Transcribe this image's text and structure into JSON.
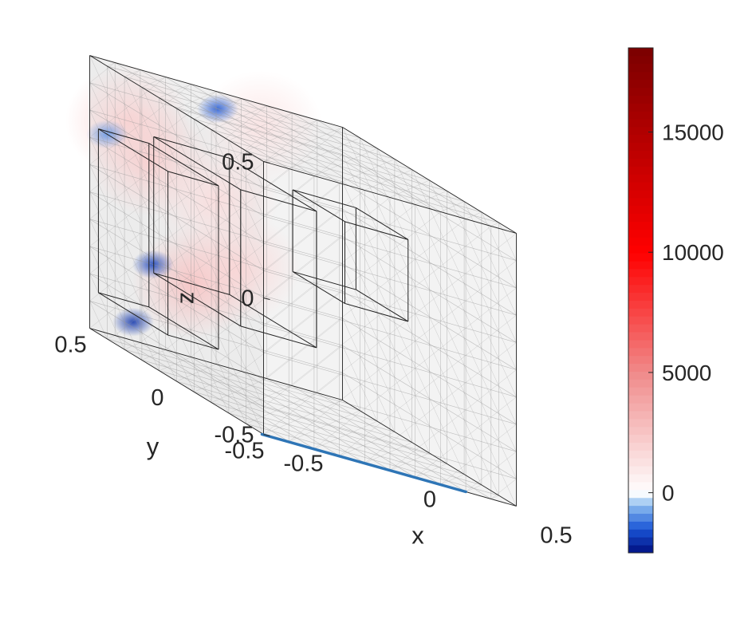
{
  "chart_data": {
    "type": "heatmap",
    "title": "",
    "axes": {
      "x": {
        "label": "x",
        "range": [
          -0.5,
          0.5
        ],
        "ticks": [
          -0.5,
          0,
          0.5
        ],
        "tick_labels": [
          "-0.5",
          "0",
          "0.5"
        ]
      },
      "y": {
        "label": "y",
        "range": [
          -0.5,
          0.5
        ],
        "ticks": [
          -0.5,
          0,
          0.5
        ],
        "tick_labels": [
          "-0.5",
          "0",
          "0.5"
        ]
      },
      "z": {
        "label": "z",
        "range": [
          -0.5,
          0.5
        ],
        "ticks": [
          -0.5,
          0,
          0.5
        ],
        "tick_labels": [
          "-0.5",
          "0",
          "0.5"
        ]
      }
    },
    "grid": true,
    "colorbar": {
      "range": [
        -2500,
        18500
      ],
      "ticks": [
        0,
        5000,
        10000,
        15000
      ],
      "tick_labels": [
        "0",
        "5000",
        "10000",
        "15000"
      ],
      "placement": "right",
      "colormap_stops": [
        {
          "value": -2500,
          "color": "#000f80"
        },
        {
          "value": -1500,
          "color": "#1a55d6"
        },
        {
          "value": -500,
          "color": "#8fbff0"
        },
        {
          "value": 0,
          "color": "#ffffff"
        },
        {
          "value": 5000,
          "color": "#f08a8a"
        },
        {
          "value": 10000,
          "color": "#ff0000"
        },
        {
          "value": 18500,
          "color": "#7a0000"
        }
      ]
    },
    "field_blobs": [
      {
        "face": "back-yz",
        "center": [
          -0.5,
          -0.1,
          -0.1
        ],
        "value": 2800
      },
      {
        "face": "back-yz",
        "center": [
          -0.5,
          0.15,
          0.25
        ],
        "value": 2200
      },
      {
        "face": "back-yz",
        "center": [
          -0.5,
          -0.35,
          0.05
        ],
        "value": 1800
      },
      {
        "face": "back-xz",
        "center": [
          0.0,
          0.5,
          0.1
        ],
        "value": 1500
      },
      {
        "face": "back-xz",
        "center": [
          -0.35,
          0.5,
          0.3
        ],
        "value": 2000
      },
      {
        "face": "top",
        "center": [
          -0.1,
          0.1,
          0.5
        ],
        "value": 1200
      },
      {
        "face": "back-yz",
        "center": [
          -0.5,
          0.25,
          -0.38
        ],
        "value": -2000
      },
      {
        "face": "back-xz",
        "center": [
          -0.25,
          0.5,
          -0.2
        ],
        "value": -1800
      },
      {
        "face": "top",
        "center": [
          -0.2,
          0.2,
          0.5
        ],
        "value": -1500
      },
      {
        "face": "back-yz",
        "center": [
          -0.5,
          0.4,
          0.25
        ],
        "value": -900
      }
    ]
  }
}
